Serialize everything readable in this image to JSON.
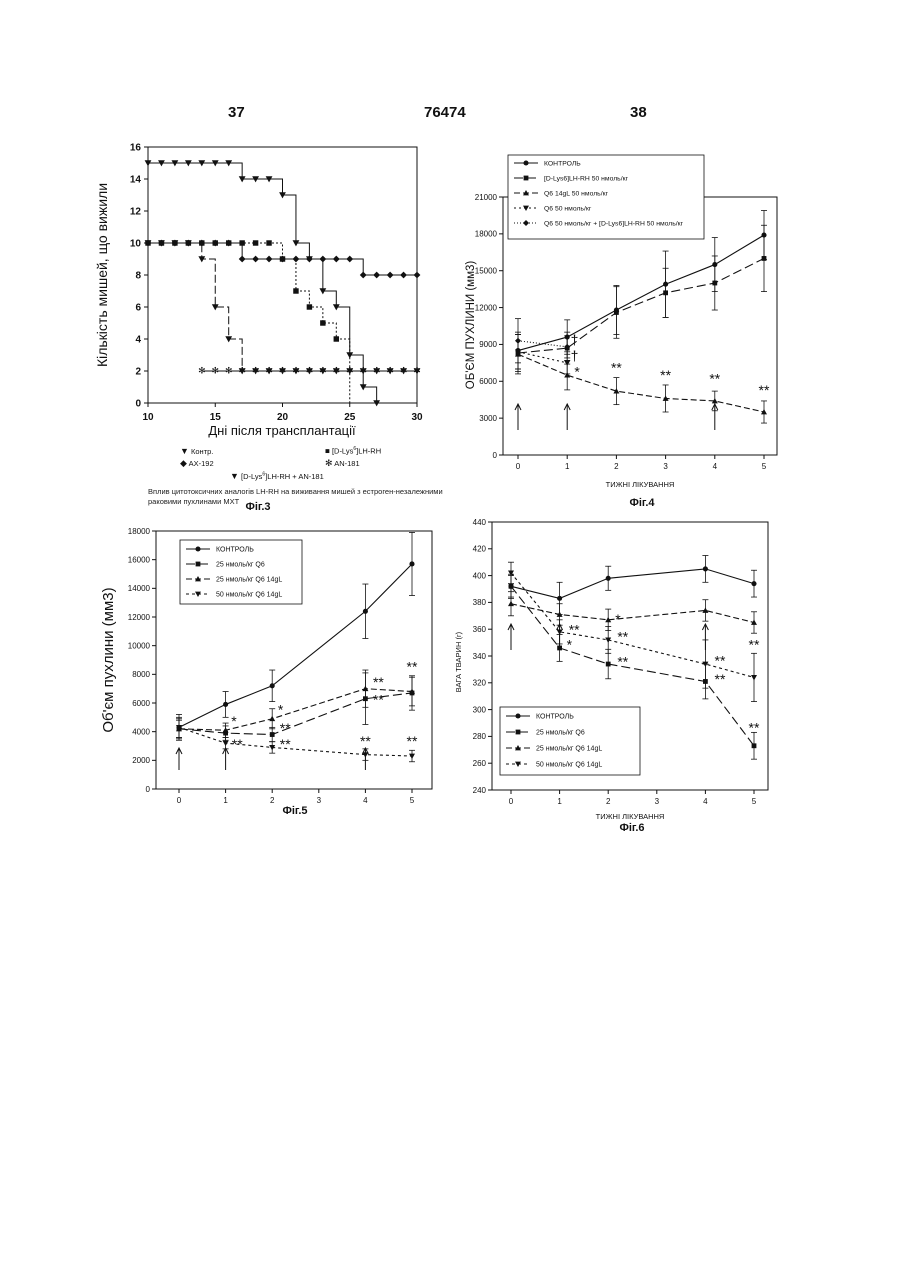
{
  "header": {
    "left_page": "37",
    "center_number": "76474",
    "right_page": "38"
  },
  "fig3": {
    "figure_label": "Фіг.3",
    "caption": "Вплив цитотоксичних аналогів LH-RH на виживання мишей з естроген-незалежними раковими пухлинами MXT",
    "legend": {
      "control": "Контр.",
      "ax192": "AX-192",
      "dlys_pre": "[D-Lys",
      "dlys_sup": "6",
      "dlys_post": "]LH-RH",
      "an181": "AN-181",
      "combo_pre": "[D-Lys",
      "combo_sup": "6",
      "combo_post": "]LH-RH + AN-181"
    }
  },
  "fig4": {
    "figure_label": "Фіг.4"
  },
  "fig5": {
    "figure_label": "Фіг.5"
  },
  "fig6": {
    "figure_label": "Фіг.6"
  },
  "chart_data": [
    {
      "id": "fig3",
      "type": "line",
      "step": true,
      "xlabel": "Дні після трансплантації",
      "ylabel": "Кількість мишей, що вижили",
      "xlim": [
        10,
        30
      ],
      "ylim": [
        0,
        16
      ],
      "xticks": [
        10,
        15,
        20,
        25,
        30
      ],
      "yticks": [
        0,
        2,
        4,
        6,
        8,
        10,
        12,
        14,
        16
      ],
      "series": [
        {
          "name": "Контр.",
          "marker": "tri-down",
          "x": [
            10,
            11,
            12,
            13,
            14,
            15,
            16,
            17,
            18,
            19,
            20,
            21,
            22,
            23,
            24,
            25,
            26,
            27
          ],
          "y": [
            15,
            15,
            15,
            15,
            15,
            15,
            15,
            14,
            14,
            14,
            13,
            10,
            9,
            7,
            6,
            3,
            1,
            0
          ]
        },
        {
          "name": "AX-192",
          "marker": "diamond",
          "x": [
            10,
            11,
            12,
            13,
            14,
            15,
            16,
            17,
            18,
            19,
            20,
            21,
            22,
            23,
            24,
            25,
            26,
            27,
            28,
            29,
            30
          ],
          "y": [
            10,
            10,
            10,
            10,
            10,
            10,
            10,
            9,
            9,
            9,
            9,
            9,
            9,
            9,
            9,
            9,
            8,
            8,
            8,
            8,
            8
          ]
        },
        {
          "name": "[D-Lys6]LH-RH",
          "marker": "square",
          "x": [
            10,
            11,
            12,
            13,
            14,
            15,
            16,
            17,
            18,
            19,
            20,
            21,
            22,
            23,
            24,
            25
          ],
          "y": [
            10,
            10,
            10,
            10,
            10,
            10,
            10,
            10,
            10,
            10,
            9,
            7,
            6,
            5,
            4,
            0
          ]
        },
        {
          "name": "AN-181",
          "marker": "star",
          "x": [
            14,
            15,
            16,
            17,
            18,
            19,
            20,
            21,
            22,
            23,
            24,
            25,
            26,
            27,
            28,
            29,
            30
          ],
          "y": [
            2,
            2,
            2,
            2,
            2,
            2,
            2,
            2,
            2,
            2,
            2,
            2,
            2,
            2,
            2,
            2,
            2
          ]
        },
        {
          "name": "[D-Lys6]LH-RH + AN-181",
          "marker": "tri-down",
          "x": [
            10,
            11,
            12,
            13,
            14,
            15,
            16,
            17,
            18,
            19,
            20,
            21,
            22,
            23,
            24,
            25,
            26,
            27,
            28,
            29,
            30
          ],
          "y": [
            10,
            10,
            10,
            10,
            9,
            6,
            4,
            2,
            2,
            2,
            2,
            2,
            2,
            2,
            2,
            2,
            2,
            2,
            2,
            2,
            2
          ]
        }
      ]
    },
    {
      "id": "fig4",
      "type": "line",
      "xlabel": "ТИЖНІ ЛІКУВАННЯ",
      "ylabel": "ОБ'ЄМ ПУХЛИНИ (мм3)",
      "xlim": [
        0,
        5
      ],
      "ylim": [
        0,
        21000
      ],
      "xticks": [
        0,
        1,
        2,
        3,
        4,
        5
      ],
      "yticks": [
        0,
        3000,
        6000,
        9000,
        12000,
        15000,
        18000,
        21000
      ],
      "legend": [
        "КОНТРОЛЬ",
        "[D-Lys6]LH-RH 50 нмоль/кг",
        "Q6 14gL 50 нмоль/кг",
        "Q6   50 нмоль/кг",
        "Q6   50 нмоль/кг + [D-Lys6]LH-RH 50 нмоль/кг"
      ],
      "series": [
        {
          "name": "КОНТРОЛЬ",
          "marker": "circle",
          "dash": "",
          "x": [
            0,
            1,
            2,
            3,
            4,
            5
          ],
          "y": [
            8500,
            9600,
            11800,
            13900,
            15500,
            17900
          ],
          "err": [
            1500,
            1400,
            2000,
            2700,
            2200,
            2000
          ]
        },
        {
          "name": "[D-Lys6]LH-RH 50 нмоль/кг",
          "marker": "square",
          "dash": "9,4",
          "x": [
            0,
            1,
            2,
            3,
            4,
            5
          ],
          "y": [
            8300,
            8700,
            11600,
            13200,
            14000,
            16000
          ],
          "err": [
            1500,
            1300,
            2100,
            2000,
            2200,
            2700
          ]
        },
        {
          "name": "Q6 14gL 50 нмоль/кг",
          "marker": "tri-up",
          "dash": "6,3",
          "x": [
            0,
            1,
            2,
            3,
            4,
            5
          ],
          "y": [
            8200,
            6500,
            5200,
            4600,
            4400,
            3500
          ],
          "err": [
            1600,
            1200,
            1100,
            1100,
            800,
            900
          ]
        },
        {
          "name": "Q6   50 нмоль/кг",
          "marker": "tri-down",
          "dash": "2,3",
          "x": [
            0,
            1
          ],
          "y": [
            8400,
            7500
          ],
          "err": [
            1400,
            900
          ]
        },
        {
          "name": "Q6   50 нмоль/кг + [D-Lys6]LH-RH 50 нмоль/кг",
          "marker": "diamond",
          "dash": "1,2",
          "x": [
            0,
            1
          ],
          "y": [
            9300,
            8800
          ],
          "err": [
            1800,
            900
          ]
        }
      ],
      "annotations": [
        {
          "text": "†",
          "x": 1.15,
          "y": 9000
        },
        {
          "text": "†",
          "x": 1.15,
          "y": 7700
        },
        {
          "text": "*",
          "x": 1.2,
          "y": 6400
        },
        {
          "text": "**",
          "x": 2,
          "y": 6700
        },
        {
          "text": "**",
          "x": 3,
          "y": 6100
        },
        {
          "text": "**",
          "x": 4,
          "y": 5800
        },
        {
          "text": "**",
          "x": 5,
          "y": 4900
        }
      ],
      "arrows_at": [
        0,
        1,
        4
      ]
    },
    {
      "id": "fig5",
      "type": "line",
      "xlabel": "",
      "ylabel": "Об'єм пухлини (мм3)",
      "xlim": [
        0,
        5
      ],
      "ylim": [
        0,
        18000
      ],
      "xticks": [
        0,
        1,
        2,
        3,
        4,
        5
      ],
      "yticks": [
        0,
        2000,
        4000,
        6000,
        8000,
        10000,
        12000,
        14000,
        16000,
        18000
      ],
      "legend": [
        "КОНТРОЛЬ",
        "25 нмоль/кг Q6",
        "25 нмоль/кг Q6 14gL",
        "50 нмоль/кг Q6 14gL"
      ],
      "series": [
        {
          "name": "КОНТРОЛЬ",
          "marker": "circle",
          "dash": "",
          "x": [
            0,
            1,
            2,
            4,
            5
          ],
          "y": [
            4300,
            5900,
            7200,
            12400,
            15700
          ],
          "err": [
            900,
            900,
            1100,
            1900,
            2200
          ]
        },
        {
          "name": "25 нмоль/кг Q6",
          "marker": "square",
          "dash": "9,4",
          "x": [
            0,
            1,
            2,
            4,
            5
          ],
          "y": [
            4200,
            3900,
            3800,
            6300,
            6700
          ],
          "err": [
            700,
            500,
            500,
            1800,
            1200
          ]
        },
        {
          "name": "25 нмоль/кг Q6 14gL",
          "marker": "tri-up",
          "dash": "6,3",
          "x": [
            0,
            1,
            2,
            4,
            5
          ],
          "y": [
            4200,
            4100,
            4900,
            7000,
            6800
          ],
          "err": [
            600,
            500,
            700,
            1300,
            1000
          ]
        },
        {
          "name": "50 нмоль/кг Q6 14gL",
          "marker": "tri-down",
          "dash": "3,3",
          "x": [
            0,
            1,
            2,
            4,
            5
          ],
          "y": [
            4300,
            3200,
            2900,
            2400,
            2300
          ],
          "err": [
            700,
            400,
            400,
            400,
            400
          ]
        }
      ],
      "annotations": [
        {
          "text": "*",
          "x": 1.18,
          "y": 4400
        },
        {
          "text": "**",
          "x": 1.25,
          "y": 2800
        },
        {
          "text": "*",
          "x": 2.18,
          "y": 5200
        },
        {
          "text": "**",
          "x": 2.28,
          "y": 3900
        },
        {
          "text": "**",
          "x": 2.28,
          "y": 2800
        },
        {
          "text": "**",
          "x": 4.28,
          "y": 7100
        },
        {
          "text": "**",
          "x": 4.28,
          "y": 5900
        },
        {
          "text": "**",
          "x": 4,
          "y": 3000
        },
        {
          "text": "**",
          "x": 5,
          "y": 8200
        },
        {
          "text": "**",
          "x": 5,
          "y": 3000
        }
      ],
      "arrows_at": [
        0,
        1,
        4
      ]
    },
    {
      "id": "fig6",
      "type": "line",
      "xlabel": "ТИЖНІ ЛІКУВАННЯ",
      "ylabel": "ВАГА ТВАРИН (г)",
      "xlim": [
        0,
        5
      ],
      "ylim": [
        240,
        440
      ],
      "xticks": [
        0,
        1,
        2,
        3,
        4,
        5
      ],
      "yticks": [
        240,
        260,
        280,
        300,
        320,
        340,
        360,
        380,
        400,
        420,
        440
      ],
      "legend": [
        "КОНТРОЛЬ",
        "25 нмоль/кг Q6",
        "25 нмоль/кг Q6 14gL",
        "50 нмоль/кг Q6 14gL"
      ],
      "series": [
        {
          "name": "КОНТРОЛЬ",
          "marker": "circle",
          "dash": "",
          "x": [
            0,
            1,
            2,
            4,
            5
          ],
          "y": [
            392,
            383,
            398,
            405,
            394
          ],
          "err": [
            9,
            12,
            9,
            10,
            10
          ]
        },
        {
          "name": "25 нмоль/кг Q6",
          "marker": "square",
          "dash": "9,4",
          "x": [
            0,
            1,
            2,
            4,
            5
          ],
          "y": [
            392,
            346,
            334,
            321,
            273
          ],
          "err": [
            8,
            10,
            11,
            13,
            10
          ]
        },
        {
          "name": "25 нмоль/кг Q6 14gL",
          "marker": "tri-up",
          "dash": "6,3",
          "x": [
            0,
            1,
            2,
            4,
            5
          ],
          "y": [
            379,
            371,
            367,
            374,
            365
          ],
          "err": [
            9,
            8,
            8,
            8,
            8
          ]
        },
        {
          "name": "50 нмоль/кг Q6 14gL",
          "marker": "tri-down",
          "dash": "3,3",
          "x": [
            0,
            1,
            2,
            4,
            5
          ],
          "y": [
            402,
            358,
            352,
            334,
            324
          ],
          "err": [
            8,
            9,
            10,
            18,
            18
          ]
        }
      ],
      "annotations": [
        {
          "text": "*",
          "x": 1.2,
          "y": 345
        },
        {
          "text": "**",
          "x": 1.3,
          "y": 356
        },
        {
          "text": "*",
          "x": 2.2,
          "y": 364
        },
        {
          "text": "**",
          "x": 2.3,
          "y": 351
        },
        {
          "text": "**",
          "x": 2.3,
          "y": 332
        },
        {
          "text": "**",
          "x": 4.3,
          "y": 333
        },
        {
          "text": "**",
          "x": 4.3,
          "y": 319
        },
        {
          "text": "**",
          "x": 5,
          "y": 345
        },
        {
          "text": "**",
          "x": 5,
          "y": 283
        }
      ],
      "arrows_at": [
        0,
        1,
        4
      ]
    }
  ]
}
